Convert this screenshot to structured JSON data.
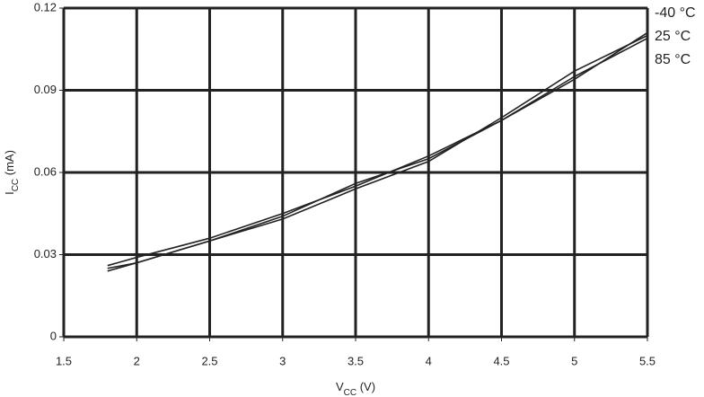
{
  "chart_data": {
    "type": "line",
    "xlabel": [
      "V",
      "CC",
      " (V)"
    ],
    "ylabel": [
      "I",
      "CC",
      " (mA)"
    ],
    "x": [
      1.8,
      2,
      2.5,
      3,
      3.5,
      4,
      4.5,
      5,
      5.5
    ],
    "series": [
      {
        "name": "-40 °C",
        "color": "#222222",
        "values": [
          0.026,
          0.029,
          0.036,
          0.045,
          0.055,
          0.066,
          0.079,
          0.095,
          0.109
        ]
      },
      {
        "name": "25 °C",
        "color": "#222222",
        "values": [
          0.025,
          0.027,
          0.035,
          0.043,
          0.054,
          0.064,
          0.08,
          0.097,
          0.11
        ]
      },
      {
        "name": "85 °C",
        "color": "#222222",
        "values": [
          0.024,
          0.027,
          0.035,
          0.044,
          0.056,
          0.065,
          0.079,
          0.094,
          0.111
        ]
      }
    ],
    "xlim": [
      1.5,
      5.5
    ],
    "xticks": [
      1.5,
      2,
      2.5,
      3,
      3.5,
      4,
      4.5,
      5,
      5.5
    ],
    "ylim": [
      0,
      0.12
    ],
    "yticks": [
      0,
      0.03,
      0.06,
      0.09,
      0.12
    ],
    "grid": true
  }
}
